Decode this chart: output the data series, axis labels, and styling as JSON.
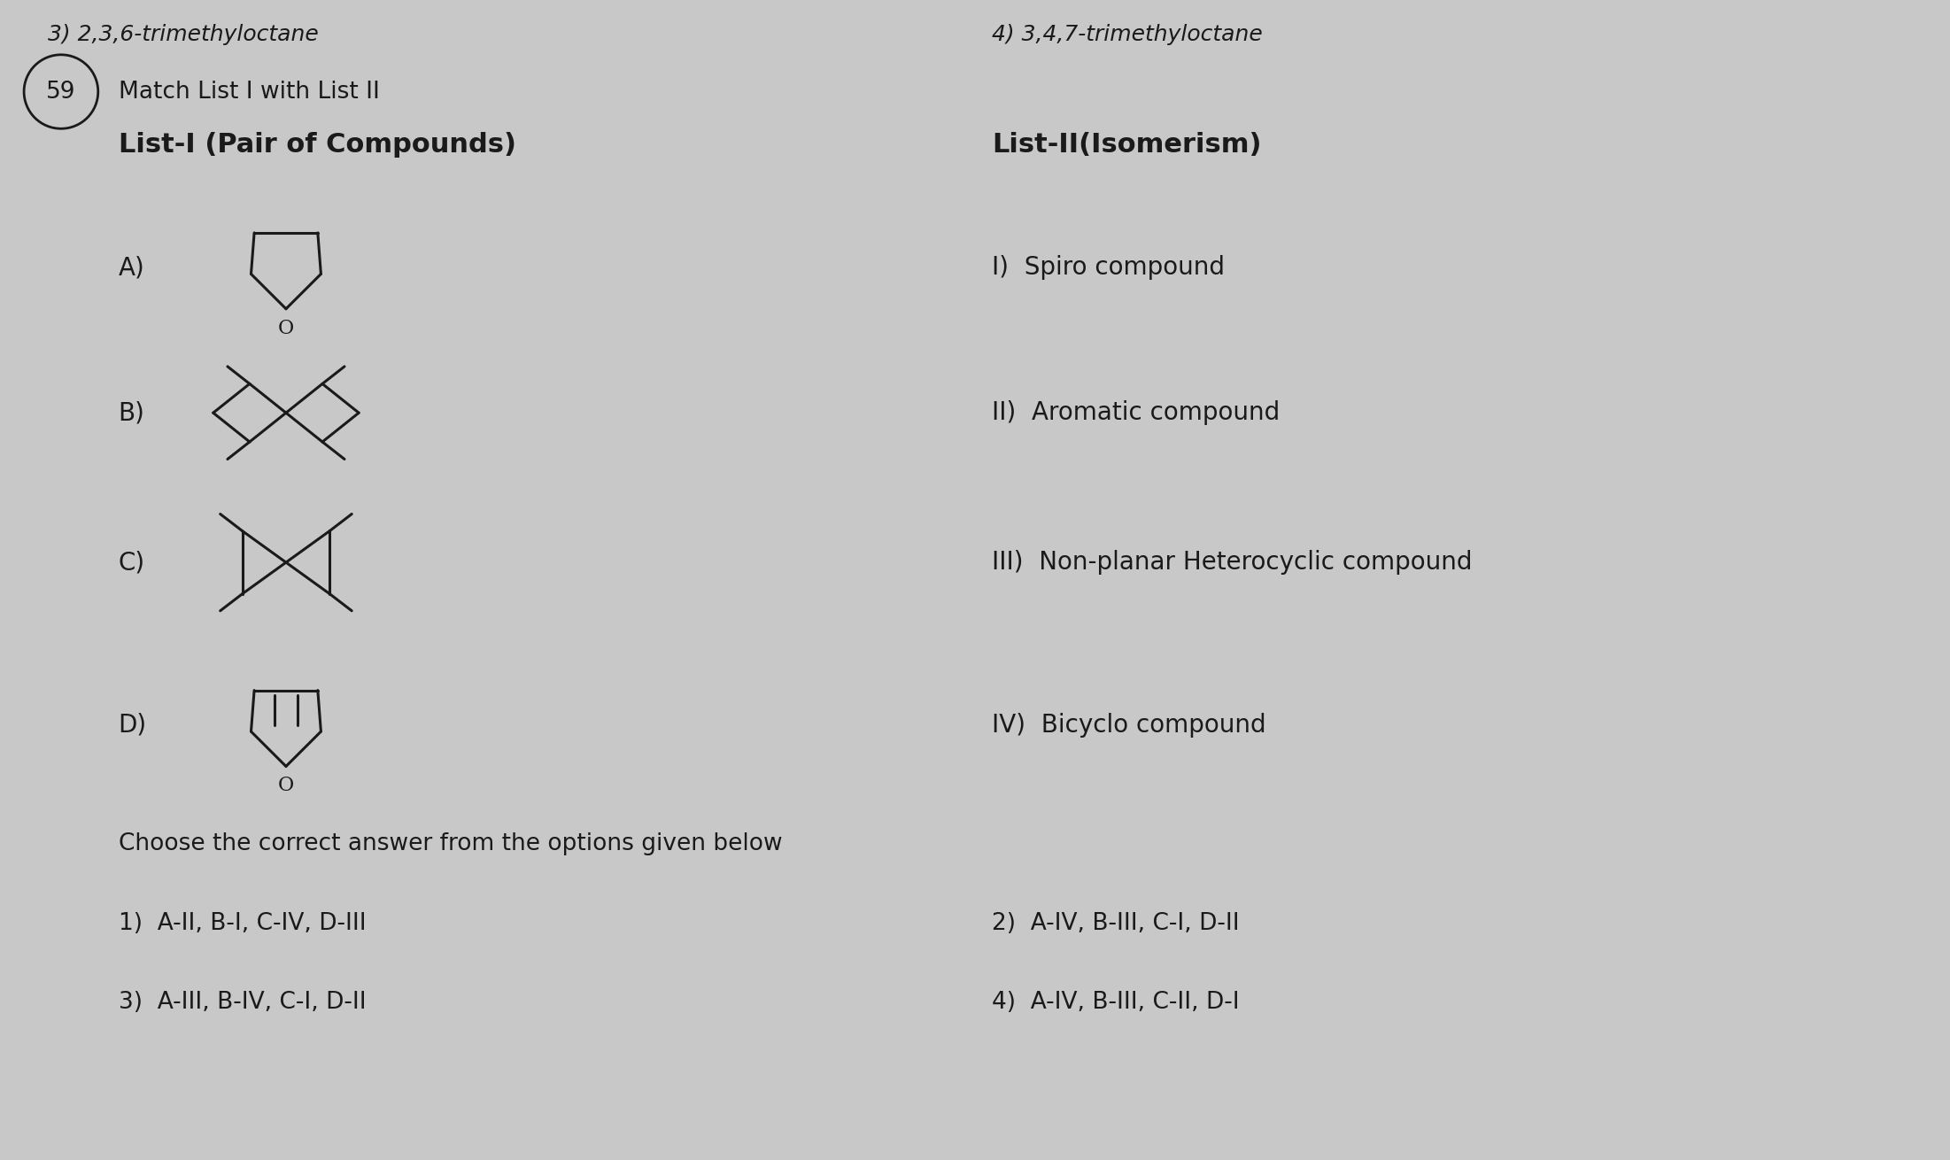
{
  "bg_color": "#c8c8c8",
  "text_color": "#1a1a1a",
  "title_top": "3) 2,3,6-trimethyloctane",
  "title_top2": "4) 3,4,7-trimethyloctane",
  "question_num": "59",
  "question_text": "Match List I with List II",
  "list1_header": "List-I (Pair of Compounds)",
  "list2_header": "List-II(Isomerism)",
  "list1_labels": [
    "A)",
    "B)",
    "C)",
    "D)"
  ],
  "list2_items": [
    "I)  Spiro compound",
    "II)  Aromatic compound",
    "III)  Non-planar Heterocyclic compound",
    "IV)  Bicyclo compound"
  ],
  "footer_text": "Choose the correct answer from the options given below",
  "options": [
    "1)  A-II, B-I, C-IV, D-III",
    "2)  A-IV, B-III, C-I, D-II",
    "3)  A-III, B-IV, C-I, D-II",
    "4)  A-IV, B-III, C-II, D-I"
  ],
  "font_size_header": 22,
  "font_size_label": 20,
  "font_size_list2": 20,
  "font_size_footer": 19,
  "font_size_options": 19,
  "font_size_qnum": 19,
  "font_size_top": 18
}
